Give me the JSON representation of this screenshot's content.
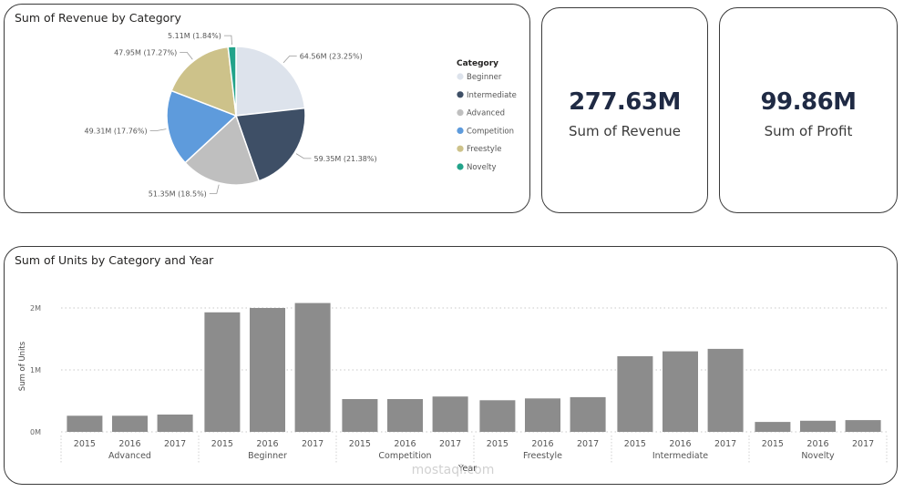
{
  "pie_card": {
    "title": "Sum of Revenue by Category"
  },
  "revenue_card": {
    "value": "277.63M",
    "label": "Sum of Revenue"
  },
  "profit_card": {
    "value": "99.86M",
    "label": "Sum of Profit"
  },
  "bar_card": {
    "title": "Sum of Units by Category and Year"
  },
  "watermark": "mostaqi.com",
  "chart_data": [
    {
      "type": "pie",
      "title": "Sum of Revenue by Category",
      "legend_title": "Category",
      "legend_position": "right",
      "slices": [
        {
          "name": "Beginner",
          "value": 64.56,
          "label": "64.56M (23.25%)",
          "color": "#dde3ec"
        },
        {
          "name": "Intermediate",
          "value": 59.35,
          "label": "59.35M (21.38%)",
          "color": "#3e4f66"
        },
        {
          "name": "Advanced",
          "value": 51.35,
          "label": "51.35M (18.5%)",
          "color": "#bfbfbf"
        },
        {
          "name": "Competition",
          "value": 49.31,
          "label": "49.31M (17.76%)",
          "color": "#5e9bdc"
        },
        {
          "name": "Freestyle",
          "value": 47.95,
          "label": "47.95M (17.27%)",
          "color": "#cdc28a"
        },
        {
          "name": "Novelty",
          "value": 5.11,
          "label": "5.11M (1.84%)",
          "color": "#22a38a"
        }
      ]
    },
    {
      "type": "bar",
      "title": "Sum of Units by Category and Year",
      "xlabel": "Year",
      "ylabel": "Sum of Units",
      "ylim": [
        0,
        2000000
      ],
      "yticks": [
        0,
        1000000,
        2000000
      ],
      "ytick_labels": [
        "0M",
        "1M",
        "2M"
      ],
      "grid": true,
      "bar_color": "#8c8c8c",
      "groups": [
        {
          "category": "Advanced",
          "years": [
            "2015",
            "2016",
            "2017"
          ],
          "values": [
            260000,
            260000,
            280000
          ]
        },
        {
          "category": "Beginner",
          "years": [
            "2015",
            "2016",
            "2017"
          ],
          "values": [
            1930000,
            2000000,
            2080000
          ]
        },
        {
          "category": "Competition",
          "years": [
            "2015",
            "2016",
            "2017"
          ],
          "values": [
            530000,
            530000,
            570000
          ]
        },
        {
          "category": "Freestyle",
          "years": [
            "2015",
            "2016",
            "2017"
          ],
          "values": [
            510000,
            540000,
            560000
          ]
        },
        {
          "category": "Intermediate",
          "years": [
            "2015",
            "2016",
            "2017"
          ],
          "values": [
            1220000,
            1300000,
            1340000
          ]
        },
        {
          "category": "Novelty",
          "years": [
            "2015",
            "2016",
            "2017"
          ],
          "values": [
            160000,
            180000,
            190000
          ]
        }
      ]
    }
  ]
}
